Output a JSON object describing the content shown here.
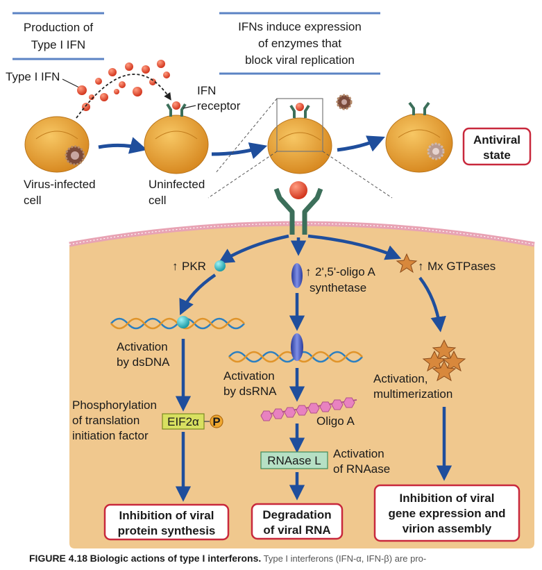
{
  "headers": {
    "production": [
      "Production of",
      "Type I IFN"
    ],
    "induce": [
      "IFNs induce expression",
      "of enzymes that",
      "block viral replication"
    ]
  },
  "labels": {
    "type1_ifn": "Type I IFN",
    "ifn_receptor": [
      "IFN",
      "receptor"
    ],
    "virus_infected": [
      "Virus-infected",
      "cell"
    ],
    "uninfected": [
      "Uninfected",
      "cell"
    ],
    "antiviral_state": [
      "Antiviral",
      "state"
    ]
  },
  "pathways": {
    "pkr": {
      "enzyme": "PKR",
      "activation": [
        "Activation",
        "by dsDNA"
      ],
      "phosphorylation": [
        "Phosphorylation",
        "of translation",
        "initiation factor"
      ],
      "factor": "EIF2α",
      "phospho": "P",
      "outcome": [
        "Inhibition of viral",
        "protein synthesis"
      ]
    },
    "oligoa": {
      "enzyme": [
        "2',5'-oligo A",
        "synthetase"
      ],
      "activation": [
        "Activation",
        "by dsRNA"
      ],
      "product": "Oligo A",
      "rnaase": "RNAase L",
      "rnaase_activation": [
        "Activation",
        "of RNAase"
      ],
      "outcome": [
        "Degradation",
        "of viral RNA"
      ]
    },
    "mx": {
      "enzyme": "Mx GTPases",
      "activation": [
        "Activation,",
        "multimerization"
      ],
      "outcome": [
        "Inhibition of viral",
        "gene expression and",
        "virion assembly"
      ]
    }
  },
  "caption": {
    "figure": "FIGURE 4.18",
    "title": "Biologic actions of type I interferons.",
    "text": "Type I interferons (IFN-α, IFN-β) are pro-"
  },
  "colors": {
    "arrow": "#1f4e9c",
    "outcome_border": "#c8283c",
    "cytoplasm": "#f0c88e",
    "membrane": "#e8a3b4",
    "cell": "#e09a2c",
    "receptor": "#3c6f5a",
    "ifn": "#e04a2e"
  }
}
